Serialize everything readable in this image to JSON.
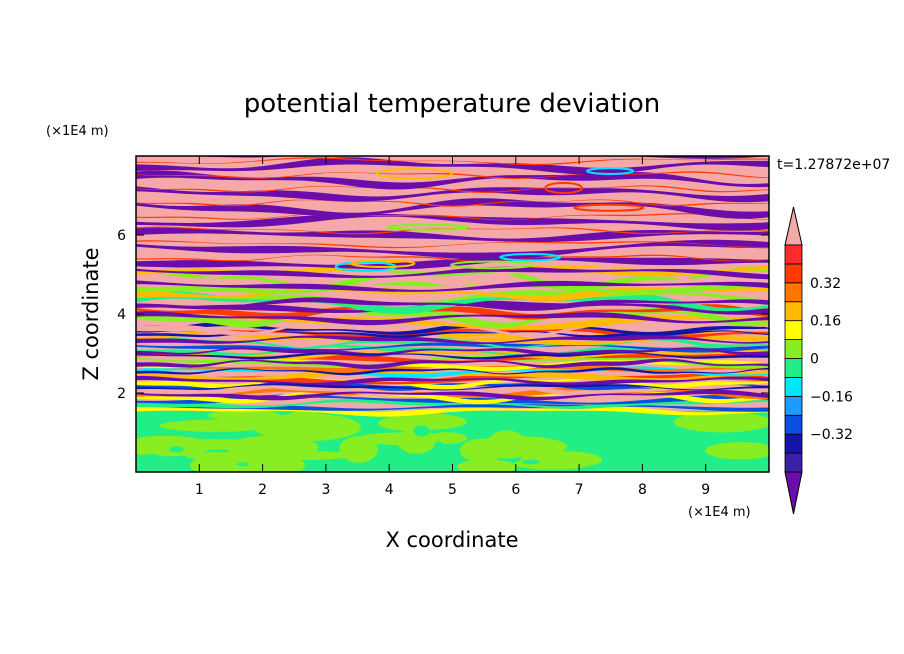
{
  "chart_data": {
    "type": "heatmap",
    "title": "potential temperature deviation",
    "xlabel": "X coordinate",
    "ylabel": "Z coordinate",
    "x_unit": "(×1E4 m)",
    "y_unit": "(×1E4 m)",
    "time_label": "t=1.27872e+07",
    "xlim": [
      0,
      10
    ],
    "ylim": [
      0,
      8
    ],
    "x_ticks": [
      "1",
      "2",
      "3",
      "4",
      "5",
      "6",
      "7",
      "8",
      "9"
    ],
    "y_ticks": [
      "2",
      "4",
      "6"
    ],
    "colorbar": {
      "levels": [
        -0.48,
        -0.4,
        -0.32,
        -0.24,
        -0.16,
        -0.08,
        0,
        0.08,
        0.16,
        0.24,
        0.32,
        0.4,
        0.48
      ],
      "labels": [
        "0.32",
        "0.16",
        "0",
        "−0.16",
        "−0.32"
      ],
      "colors": [
        "#6a0dab",
        "#3a22a8",
        "#1414a8",
        "#0b4fe0",
        "#1e9bff",
        "#00e8ff",
        "#22ee88",
        "#88ee22",
        "#ffff00",
        "#ffbb00",
        "#ff7700",
        "#ff3a00",
        "#ff2a2a",
        "#f4a8a8"
      ],
      "extend": "both"
    },
    "bands": [
      {
        "z0": 0.0,
        "z1": 1.5,
        "pattern": "mixed-green"
      },
      {
        "z0": 1.5,
        "z1": 3.6,
        "pattern": "turbulent"
      },
      {
        "z0": 3.6,
        "z1": 5.2,
        "pattern": "wavy-mixed"
      },
      {
        "z0": 5.2,
        "z1": 8.0,
        "pattern": "layered-pink-purple"
      }
    ]
  }
}
